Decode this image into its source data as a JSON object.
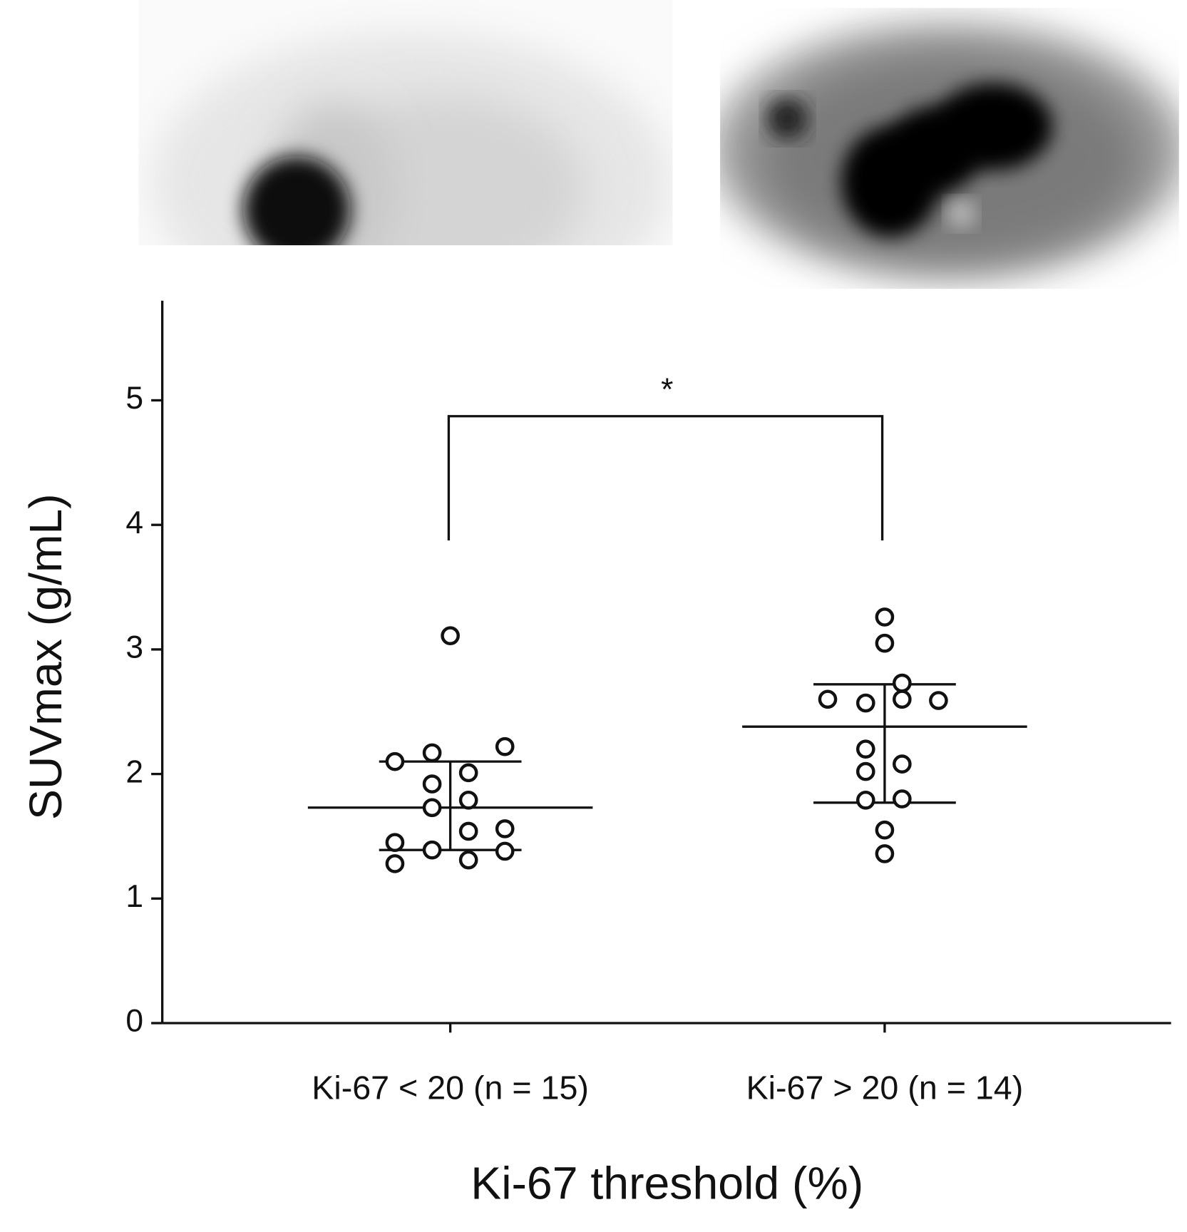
{
  "chart_data": {
    "type": "dotplot",
    "y_label": "SUVmax (g/mL)",
    "x_label": "Ki-67 threshold (%)",
    "annotation": "*",
    "categories": [
      "Ki-67 < 20 (n = 15)",
      "Ki-67 > 20 (n = 14)"
    ],
    "values": [
      [
        3.11,
        2.1,
        2.17,
        2.22,
        2.01,
        1.92,
        1.79,
        1.73,
        1.54,
        1.56,
        1.45,
        1.39,
        1.38,
        1.28,
        1.31
      ],
      [
        3.26,
        3.05,
        2.73,
        2.6,
        2.57,
        2.6,
        2.59,
        2.2,
        2.02,
        2.08,
        1.79,
        1.8,
        1.55,
        1.36
      ]
    ],
    "center": [
      1.73,
      2.38
    ],
    "upper": [
      2.1,
      2.72
    ],
    "lower": [
      1.39,
      1.77
    ],
    "color": "#111111",
    "ylim": [
      0,
      5.8
    ],
    "yticks": [
      0,
      1,
      2,
      3,
      4,
      5
    ]
  }
}
